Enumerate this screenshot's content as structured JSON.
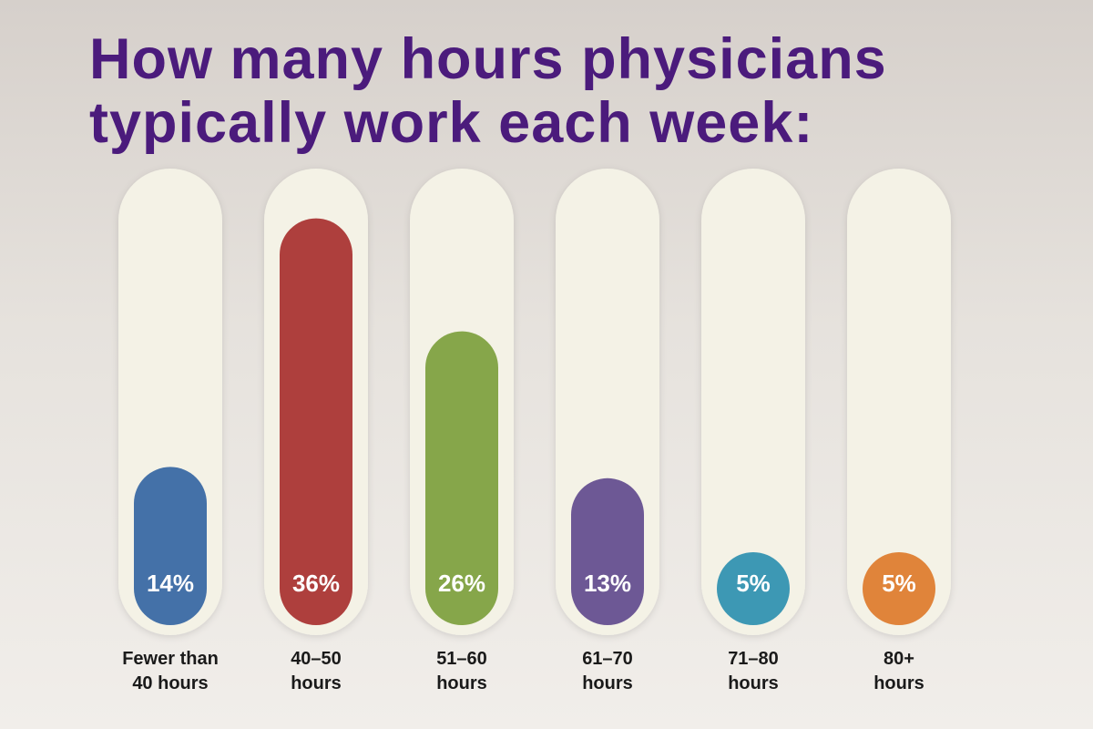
{
  "chart_data": {
    "type": "bar",
    "title": "How many hours physicians\ntypically work each week:",
    "categories": [
      "Fewer than\n40 hours",
      "40–50\nhours",
      "51–60\nhours",
      "61–70\nhours",
      "71–80\nhours",
      "80+\nhours"
    ],
    "values": [
      14,
      36,
      26,
      13,
      5,
      5
    ],
    "value_labels": [
      "14%",
      "36%",
      "26%",
      "13%",
      "5%",
      "5%"
    ],
    "colors": [
      "#4471a8",
      "#ae3f3d",
      "#86a64a",
      "#6d5895",
      "#3d98b4",
      "#e0843a"
    ]
  }
}
